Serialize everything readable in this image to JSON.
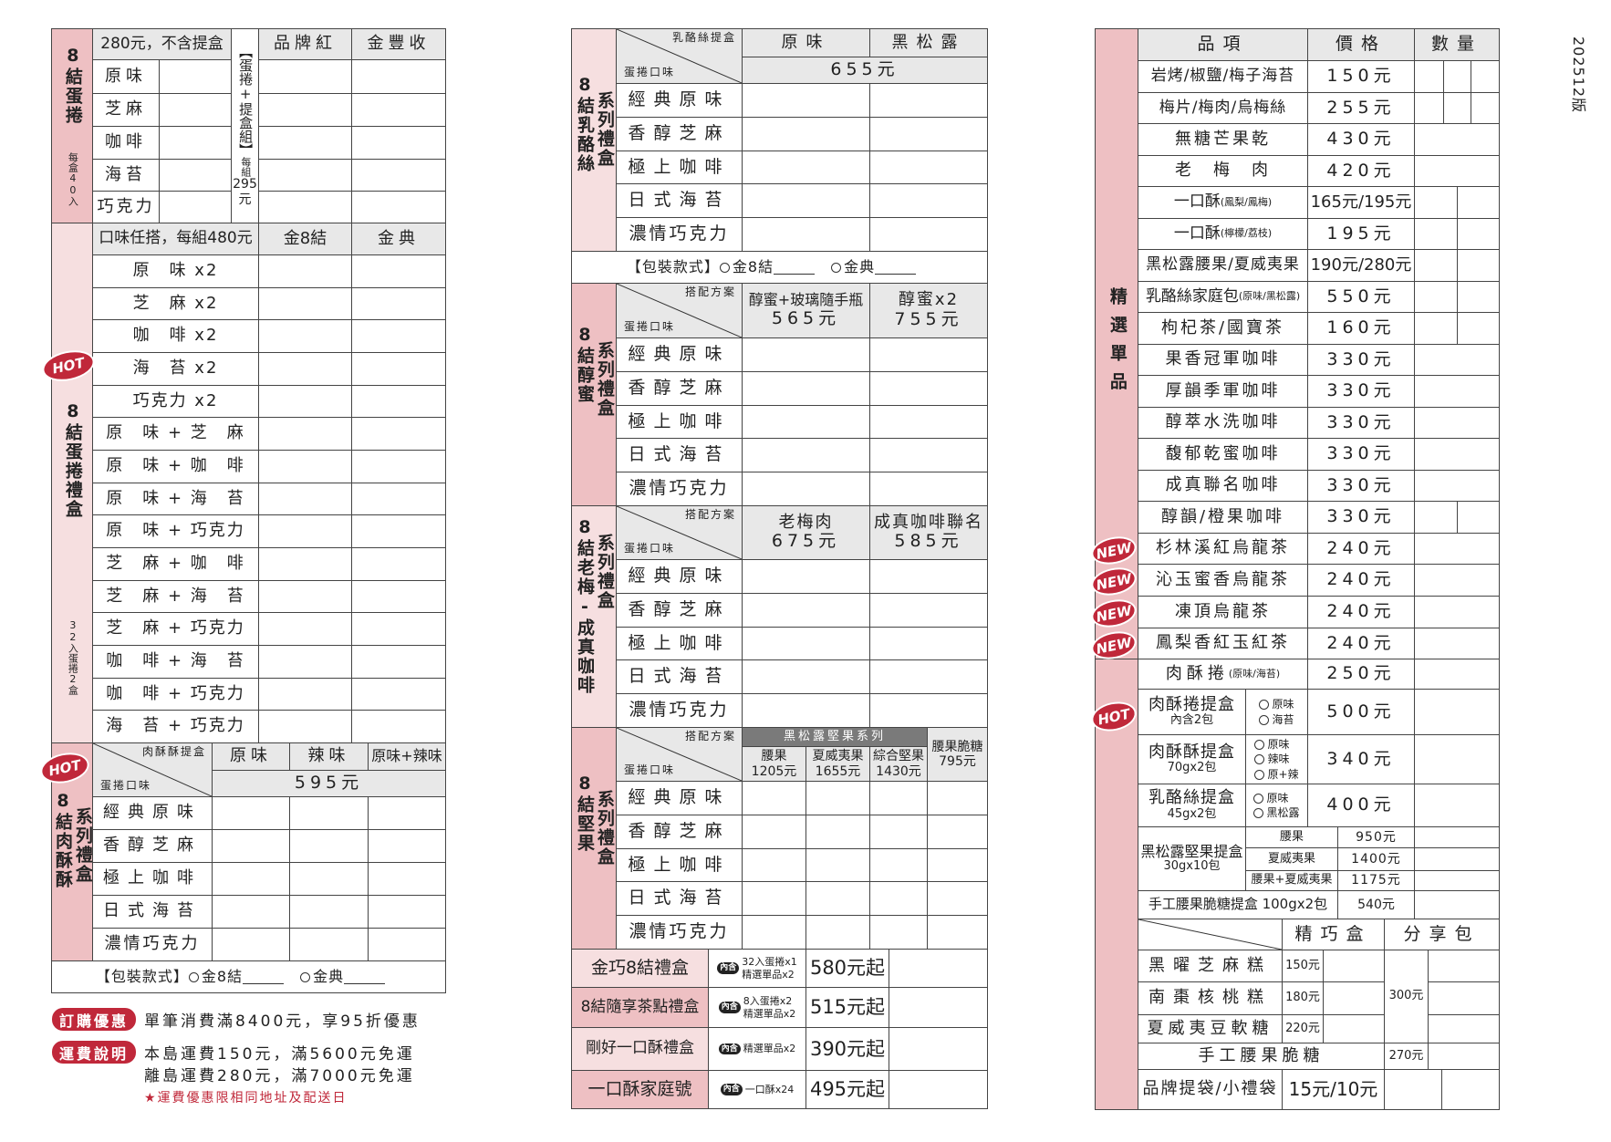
{
  "version": "202512版",
  "colors": {
    "accent_red": "#c0283a",
    "pink_dark": "#eec0c3",
    "pink_light": "#f6dfe0",
    "header_gray": "#e8e8e8"
  },
  "badges": {
    "hot": "HOT",
    "new": "NEW",
    "includes": "內含"
  },
  "common_flavors": [
    "經典原味",
    "香醇芝麻",
    "極上咖啡",
    "日式海苔",
    "濃情巧克力"
  ],
  "diag": {
    "flavor": "蛋捲口味",
    "plan": "搭配方案"
  },
  "pack": {
    "label": "【包裝款式】",
    "options": [
      "金8結",
      "金典"
    ]
  },
  "left": {
    "s1": {
      "label": "8結蛋捲",
      "sub": "每盒40入",
      "header": "280元，不含提盒",
      "flavors": [
        "原味",
        "芝麻",
        "咖啡",
        "海苔",
        "巧克力"
      ],
      "set_label": "【蛋捲+提盒組】",
      "set_each": "每組",
      "set_price": "295",
      "set_unit": "元",
      "cols": [
        "品牌紅",
        "金豐收"
      ]
    },
    "s2": {
      "label": "8結蛋捲禮盒",
      "sub": "32入蛋捲2盒",
      "header": "口味任搭，每組480元",
      "cols": [
        "金8結",
        "金典"
      ],
      "combos": [
        "原　味 x2",
        "芝　麻 x2",
        "咖　啡 x2",
        "海　苔 x2",
        "巧克力 x2",
        "原　味 + 芝　麻",
        "原　味 + 咖　啡",
        "原　味 + 海　苔",
        "原　味 + 巧克力",
        "芝　麻 + 咖　啡",
        "芝　麻 + 海　苔",
        "芝　麻 + 巧克力",
        "咖　啡 + 海　苔",
        "咖　啡 + 巧克力",
        "海　苔 + 巧克力"
      ]
    },
    "s3": {
      "label": "8結肉酥酥",
      "label2": "系列禮盒",
      "box": "肉酥酥提盒",
      "cols": [
        "原味",
        "辣味",
        "原味+辣味"
      ],
      "price": "595元"
    }
  },
  "footer": {
    "promo_badge": "訂購優惠",
    "promo_text": "單筆消費滿8400元，享95折優惠",
    "ship_badge": "運費說明",
    "ship_lines": [
      "本島運費150元，滿5600元免運",
      "離島運費280元，滿7000元免運"
    ],
    "ship_note": "★運費優惠限相同地址及配送日"
  },
  "middle": {
    "cheese": {
      "label": "8結乳酪絲",
      "label2": "系列禮盒",
      "box": "乳酪絲提盒",
      "cols": [
        "原味",
        "黑松露"
      ],
      "price": "655元"
    },
    "honey": {
      "label": "8結醇蜜",
      "label2": "系列禮盒",
      "cols": [
        {
          "name": "醇蜜+玻璃隨手瓶",
          "price": "565元"
        },
        {
          "name": "醇蜜x2",
          "price": "755元"
        }
      ]
    },
    "plum": {
      "label": "8結老梅-成真咖啡",
      "label2": "系列禮盒",
      "cols": [
        {
          "name": "老梅肉",
          "price": "675元"
        },
        {
          "name": "成真咖啡聯名",
          "price": "585元"
        }
      ]
    },
    "nut": {
      "label": "8結堅果",
      "label2": "系列禮盒",
      "group": "黑松露堅果系列",
      "cols": [
        {
          "name": "腰果",
          "price": "1205元"
        },
        {
          "name": "夏威夷果",
          "price": "1655元"
        },
        {
          "name": "綜合堅果",
          "price": "1430元"
        },
        {
          "name": "腰果脆糖",
          "price": "795元"
        }
      ]
    },
    "sets": [
      {
        "name": "金巧8結禮盒",
        "contents": [
          "32入蛋捲x1",
          "精選單品x2"
        ],
        "price": "580元起"
      },
      {
        "name": "8結隨享茶點禮盒",
        "contents": [
          "8入蛋捲x2",
          "精選單品x2"
        ],
        "price": "515元起"
      },
      {
        "name": "剛好一口酥禮盒",
        "contents": [
          "精選單品x2"
        ],
        "price": "390元起"
      },
      {
        "name": "一口酥家庭號",
        "contents": [
          "一口酥x24"
        ],
        "price": "495元起"
      }
    ]
  },
  "right": {
    "label": "精選單品",
    "headers": [
      "品項",
      "價格",
      "數量"
    ],
    "items": [
      {
        "name": "岩烤/椒鹽/梅子海苔",
        "price": "150元"
      },
      {
        "name": "梅片/梅肉/烏梅絲",
        "price": "255元"
      },
      {
        "name": "無糖芒果乾",
        "price": "430元"
      },
      {
        "name": "老　梅　肉",
        "price": "420元"
      },
      {
        "name": "一口酥",
        "note": "(鳳梨/鳳梅)",
        "price": "165元/195元"
      },
      {
        "name": "一口酥",
        "note": "(檸檬/荔枝)",
        "price": "195元"
      },
      {
        "name": "黑松露腰果/夏威夷果",
        "price": "190元/280元"
      },
      {
        "name": "乳酪絲家庭包",
        "note": "(原味/黑松露)",
        "price": "550元"
      },
      {
        "name": "枸杞茶/國寶茶",
        "price": "160元"
      },
      {
        "name": "果香冠軍咖啡",
        "price": "330元"
      },
      {
        "name": "厚韻季軍咖啡",
        "price": "330元"
      },
      {
        "name": "醇萃水洗咖啡",
        "price": "330元"
      },
      {
        "name": "馥郁乾蜜咖啡",
        "price": "330元"
      },
      {
        "name": "成真聯名咖啡",
        "price": "330元"
      },
      {
        "name": "醇韻/橙果咖啡",
        "price": "330元"
      },
      {
        "name": "杉林溪紅烏龍茶",
        "price": "240元",
        "new": true
      },
      {
        "name": "沁玉蜜香烏龍茶",
        "price": "240元",
        "new": true
      },
      {
        "name": "凍頂烏龍茶",
        "price": "240元",
        "new": true
      },
      {
        "name": "鳳梨香紅玉紅茶",
        "price": "240元",
        "new": true
      }
    ],
    "roll": {
      "name": "肉酥捲",
      "note": "(原味/海苔)",
      "price": "250元"
    },
    "roll_box": {
      "name": "肉酥捲提盒",
      "sub": "內含2包",
      "options": [
        "原味",
        "海苔"
      ],
      "price": "500元"
    },
    "floss_box": {
      "name": "肉酥酥提盒",
      "sub": "70gx2包",
      "options": [
        "原味",
        "辣味",
        "原+辣"
      ],
      "price": "340元"
    },
    "cheese_box": {
      "name": "乳酪絲提盒",
      "sub": "45gx2包",
      "options": [
        "原味",
        "黑松露"
      ],
      "price": "400元"
    },
    "nut_box": {
      "name": "黑松露堅果提盒",
      "sub": "30gx10包",
      "variants": [
        {
          "name": "腰果",
          "price": "950元"
        },
        {
          "name": "夏威夷果",
          "price": "1400元"
        },
        {
          "name": "腰果+夏威夷果",
          "price": "1175元"
        }
      ]
    },
    "brittle_box": {
      "name": "手工腰果脆糖提盒 100gx2包",
      "price": "540元"
    },
    "gift_headers": [
      "精巧盒",
      "分享包"
    ],
    "gifts": [
      {
        "name": "黑曜芝麻糕",
        "price": "150元"
      },
      {
        "name": "南棗核桃糕",
        "price": "180元"
      },
      {
        "name": "夏威夷豆軟糖",
        "price": "220元"
      }
    ],
    "share_price": "300元",
    "brittle": {
      "name": "手工腰果脆糖",
      "price": "270元"
    },
    "bag": {
      "name": "品牌提袋/小禮袋",
      "price": "15元/10元"
    }
  }
}
